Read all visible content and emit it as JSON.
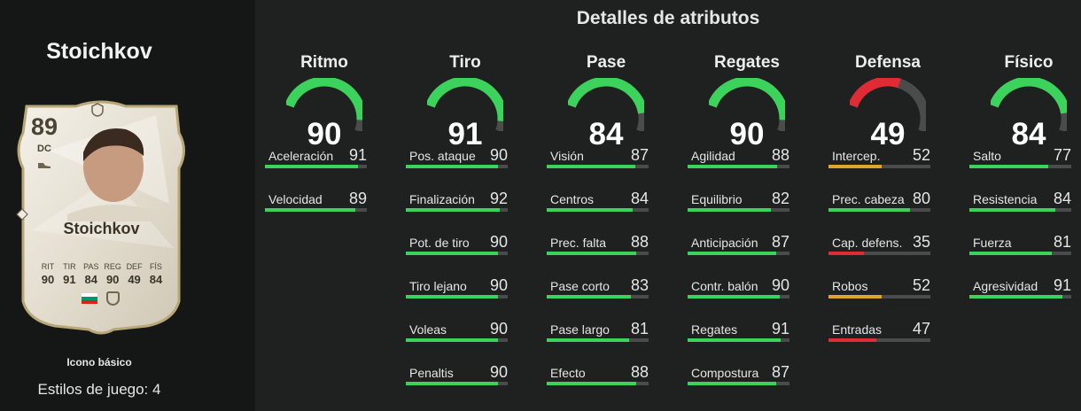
{
  "player": {
    "name": "Stoichkov",
    "card_type": "Icono básico",
    "playstyles_text": "Estilos de juego: 4"
  },
  "card": {
    "rating": "89",
    "position": "DC",
    "name": "Stoichkov",
    "stat_labels": [
      "RIT",
      "TIR",
      "PAS",
      "REG",
      "DEF",
      "FÍS"
    ],
    "stat_values": [
      "90",
      "91",
      "84",
      "90",
      "49",
      "84"
    ],
    "flag_colors": [
      "#ffffff",
      "#00966e",
      "#d62612"
    ]
  },
  "section_title": "Detalles de atributos",
  "colors": {
    "green": "#3cd35c",
    "yellow": "#e0a528",
    "red": "#e02a34",
    "track": "#4a4b4b"
  },
  "categories": [
    {
      "name": "Ritmo",
      "value": "90",
      "fraction": 0.9,
      "color": "green",
      "attributes": [
        {
          "name": "Aceleración",
          "value": "91"
        },
        {
          "name": "Velocidad",
          "value": "89"
        }
      ]
    },
    {
      "name": "Tiro",
      "value": "91",
      "fraction": 0.91,
      "color": "green",
      "attributes": [
        {
          "name": "Pos. ataque",
          "value": "90"
        },
        {
          "name": "Finalización",
          "value": "92"
        },
        {
          "name": "Pot. de tiro",
          "value": "90"
        },
        {
          "name": "Tiro lejano",
          "value": "90"
        },
        {
          "name": "Voleas",
          "value": "90"
        },
        {
          "name": "Penaltis",
          "value": "90"
        }
      ]
    },
    {
      "name": "Pase",
      "value": "84",
      "fraction": 0.84,
      "color": "green",
      "attributes": [
        {
          "name": "Visión",
          "value": "87"
        },
        {
          "name": "Centros",
          "value": "84"
        },
        {
          "name": "Prec. falta",
          "value": "88"
        },
        {
          "name": "Pase corto",
          "value": "83"
        },
        {
          "name": "Pase largo",
          "value": "81"
        },
        {
          "name": "Efecto",
          "value": "88"
        }
      ]
    },
    {
      "name": "Regates",
      "value": "90",
      "fraction": 0.9,
      "color": "green",
      "attributes": [
        {
          "name": "Agilidad",
          "value": "88"
        },
        {
          "name": "Equilibrio",
          "value": "82"
        },
        {
          "name": "Anticipación",
          "value": "87"
        },
        {
          "name": "Contr. balón",
          "value": "90"
        },
        {
          "name": "Regates",
          "value": "91"
        },
        {
          "name": "Compostura",
          "value": "87"
        }
      ]
    },
    {
      "name": "Defensa",
      "value": "49",
      "fraction": 0.49,
      "color": "red",
      "attributes": [
        {
          "name": "Intercep.",
          "value": "52"
        },
        {
          "name": "Prec. cabeza",
          "value": "80"
        },
        {
          "name": "Cap. defens.",
          "value": "35"
        },
        {
          "name": "Robos",
          "value": "52"
        },
        {
          "name": "Entradas",
          "value": "47"
        }
      ]
    },
    {
      "name": "Físico",
      "value": "84",
      "fraction": 0.84,
      "color": "green",
      "attributes": [
        {
          "name": "Salto",
          "value": "77"
        },
        {
          "name": "Resistencia",
          "value": "84"
        },
        {
          "name": "Fuerza",
          "value": "81"
        },
        {
          "name": "Agresividad",
          "value": "91"
        }
      ]
    }
  ]
}
